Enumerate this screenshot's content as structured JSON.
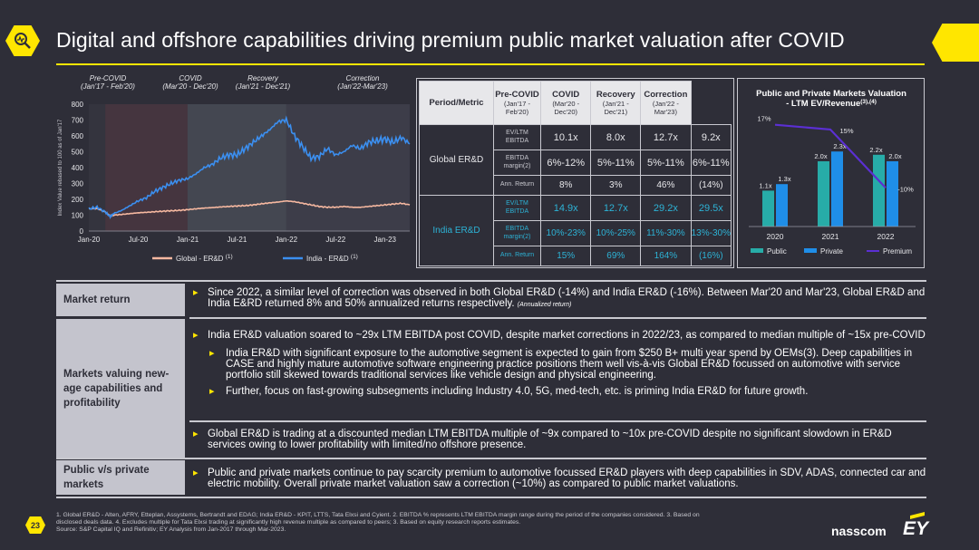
{
  "header": {
    "title": "Digital and offshore capabilities driving premium public market valuation after COVID",
    "icon": "magnifier-chart-icon"
  },
  "colors": {
    "accent": "#ffe600",
    "background": "#2e2e38",
    "global_line": "#f6b8a0",
    "india_line": "#3b8ff0",
    "public_bar": "#27aca8",
    "private_bar": "#1f8ee8",
    "premium_line": "#5b2fd3"
  },
  "chart_data": [
    {
      "type": "line",
      "title": "",
      "ylabel": "Index Value rebased to 100 as of Jan'17",
      "ylim": [
        0,
        800
      ],
      "y_ticks": [
        "0",
        "100",
        "200",
        "300",
        "400",
        "500",
        "600",
        "700",
        "800"
      ],
      "x_ticks": [
        "Jan-20",
        "Jul-20",
        "Jan-21",
        "Jul-21",
        "Jan-22",
        "Jul-22",
        "Jan-23"
      ],
      "x_months": [
        36,
        42,
        48,
        54,
        60,
        66,
        72
      ],
      "x_range": [
        36,
        75
      ],
      "periods": [
        {
          "name": "Pre-COVID",
          "range": "(Jan'17 - Feb'20)"
        },
        {
          "name": "COVID",
          "range": "(Mar'20 - Dec'20)"
        },
        {
          "name": "Recovery",
          "range": "(Jan'21 - Dec'21)"
        },
        {
          "name": "Correction",
          "range": "(Jan'22-Mar'23)"
        }
      ],
      "period_bounds": [
        [
          36,
          38
        ],
        [
          38,
          48
        ],
        [
          48,
          60
        ],
        [
          60,
          75
        ]
      ],
      "series": [
        {
          "name": "Global - ER&D",
          "sup": "(1)",
          "x": [
            36,
            37,
            38,
            38.6,
            39,
            40,
            41,
            42,
            43,
            44,
            45,
            46,
            47,
            48,
            49,
            50,
            51,
            52,
            53,
            54,
            55,
            56,
            57,
            58,
            59,
            60,
            61,
            62,
            63,
            64,
            65,
            66,
            67,
            68,
            69,
            70,
            71,
            72,
            73,
            74,
            75
          ],
          "values": [
            140,
            142,
            120,
            95,
            100,
            105,
            110,
            115,
            118,
            122,
            125,
            128,
            130,
            135,
            140,
            145,
            148,
            152,
            155,
            158,
            160,
            165,
            172,
            178,
            183,
            190,
            185,
            175,
            165,
            155,
            150,
            150,
            155,
            150,
            150,
            155,
            160,
            165,
            170,
            175,
            165
          ]
        },
        {
          "name": "India - ER&D",
          "sup": "(1)",
          "x": [
            36,
            37,
            38,
            38.6,
            39,
            40,
            41,
            42,
            43,
            44,
            45,
            46,
            47,
            48,
            49,
            50,
            51,
            52,
            53,
            54,
            55,
            56,
            57,
            58,
            59,
            60,
            61,
            62,
            63,
            64,
            65,
            66,
            67,
            68,
            69,
            70,
            71,
            72,
            73,
            74,
            75
          ],
          "values": [
            140,
            150,
            120,
            90,
            110,
            130,
            160,
            190,
            210,
            250,
            275,
            300,
            320,
            330,
            360,
            400,
            420,
            460,
            480,
            480,
            520,
            560,
            600,
            640,
            690,
            700,
            600,
            530,
            460,
            470,
            520,
            480,
            500,
            540,
            520,
            560,
            570,
            580,
            560,
            590,
            550
          ]
        }
      ]
    },
    {
      "type": "bar",
      "title": "Public and Private Markets Valuation - LTM EV/Revenue",
      "title_sup": "(3),(4)",
      "title_line1": "Public and Private Markets Valuation",
      "title_line2": "- LTM EV/Revenue",
      "categories": [
        "2020",
        "2021",
        "2022"
      ],
      "series": [
        {
          "name": "Public",
          "values": [
            1.1,
            2.0,
            2.2
          ],
          "labels": [
            "1.1x",
            "2.0x",
            "2.2x"
          ]
        },
        {
          "name": "Private",
          "values": [
            1.3,
            2.3,
            2.0
          ],
          "labels": [
            "1.3x",
            "2.3x",
            "2.0x"
          ]
        },
        {
          "name": "Premium",
          "type": "line",
          "values": [
            17,
            15,
            -10
          ],
          "labels": [
            "17%",
            "15%",
            "-10%"
          ]
        }
      ],
      "ylim": [
        0,
        3.0
      ],
      "premium_range": [
        -25,
        20
      ],
      "legend": "bottom"
    }
  ],
  "table": {
    "headers": [
      {
        "title": "Period/Metric",
        "sub": ""
      },
      {
        "title": "Pre-COVID",
        "sub": "(Jan'17 - Feb'20)"
      },
      {
        "title": "COVID",
        "sub": "(Mar'20 - Dec'20)"
      },
      {
        "title": "Recovery",
        "sub": "(Jan'21 - Dec'21)"
      },
      {
        "title": "Correction",
        "sub": "(Jan'22 - Mar'23)"
      }
    ],
    "groups": [
      {
        "name": "Global ER&D",
        "rows": [
          {
            "metric": "EV/LTM EBITDA",
            "values": [
              "10.1x",
              "8.0x",
              "12.7x",
              "9.2x"
            ]
          },
          {
            "metric": "EBITDA margin(2)",
            "values": [
              "6%-12%",
              "5%-11%",
              "5%-11%",
              "6%-11%"
            ]
          },
          {
            "metric": "Ann. Return",
            "values": [
              "8%",
              "3%",
              "46%",
              "(14%)"
            ]
          }
        ]
      },
      {
        "name": "India ER&D",
        "rows": [
          {
            "metric": "EV/LTM EBITDA",
            "values": [
              "14.9x",
              "12.7x",
              "29.2x",
              "29.5x"
            ]
          },
          {
            "metric": "EBITDA margin(2)",
            "values": [
              "10%-23%",
              "10%-25%",
              "11%-30%",
              "13%-30%"
            ]
          },
          {
            "metric": "Ann. Return",
            "values": [
              "15%",
              "69%",
              "164%",
              "(16%)"
            ]
          }
        ]
      }
    ]
  },
  "sections": [
    {
      "label": "Market return",
      "bullets": [
        {
          "level": 1,
          "text": "Since 2022, a similar level of correction was observed in both Global ER&D (-14%) and India ER&D (-16%). Between Mar'20 and Mar'23, Global ER&D and India E&RD returned 8% and 50% annualized returns respectively.",
          "note": "(Annualized return)"
        }
      ]
    },
    {
      "label": "Markets valuing new-age capabilities and profitability",
      "bullets": [
        {
          "level": 1,
          "text": "India ER&D valuation soared to ~29x LTM EBITDA post COVID, despite market corrections in 2022/23, as compared to median multiple of ~15x pre-COVID"
        },
        {
          "level": 2,
          "text": "India ER&D with significant exposure to the automotive segment is expected to gain from $250 B+ multi year spend by OEMs(3). Deep capabilities in CASE and highly mature automotive software engineering practice positions them well  vis-à-vis Global ER&D focussed on automotive with service portfolio still skewed towards traditional services like vehicle design and physical engineering."
        },
        {
          "level": 2,
          "text": "Further, focus on fast-growing subsegments including Industry 4.0, 5G, med-tech, etc. is priming India ER&D for future growth."
        },
        {
          "level": 1,
          "text": "Global ER&D is trading at a discounted median LTM EBITDA multiple of ~9x compared to ~10x pre-COVID despite no significant slowdown in ER&D services owing to lower profitability with limited/no offshore presence."
        }
      ]
    },
    {
      "label": "Public v/s private markets",
      "bullets": [
        {
          "level": 1,
          "text": "Public and private markets continue to pay scarcity premium to automotive focussed ER&D players with deep capabilities in SDV, ADAS, connected car and electric mobility. Overall private market valuation saw a correction (~10%) as compared to public market valuations."
        }
      ]
    }
  ],
  "footnote": {
    "line1": "1. Global ER&D - Alten, AFRY, Etteplan, Assystems, Bertrandt and EDAG; India ER&D - KPIT, LTTS, Tata Elxsi and Cyient. 2. EBITDA % represents LTM EBITDA margin range during the period of the companies considered. 3. Based on",
    "line2": "disclosed deals data. 4. Excludes multiple for Tata Elxsi trading at significantly high revenue multiple as compared to peers; 3. Based on equity research reports estimates.",
    "line3": "Source: S&P Capital IQ and Refinitiv; EY Analysis from Jan-2017 through Mar-2023."
  },
  "page_number": "23",
  "logos": {
    "left": "nasscom",
    "right": "EY"
  }
}
